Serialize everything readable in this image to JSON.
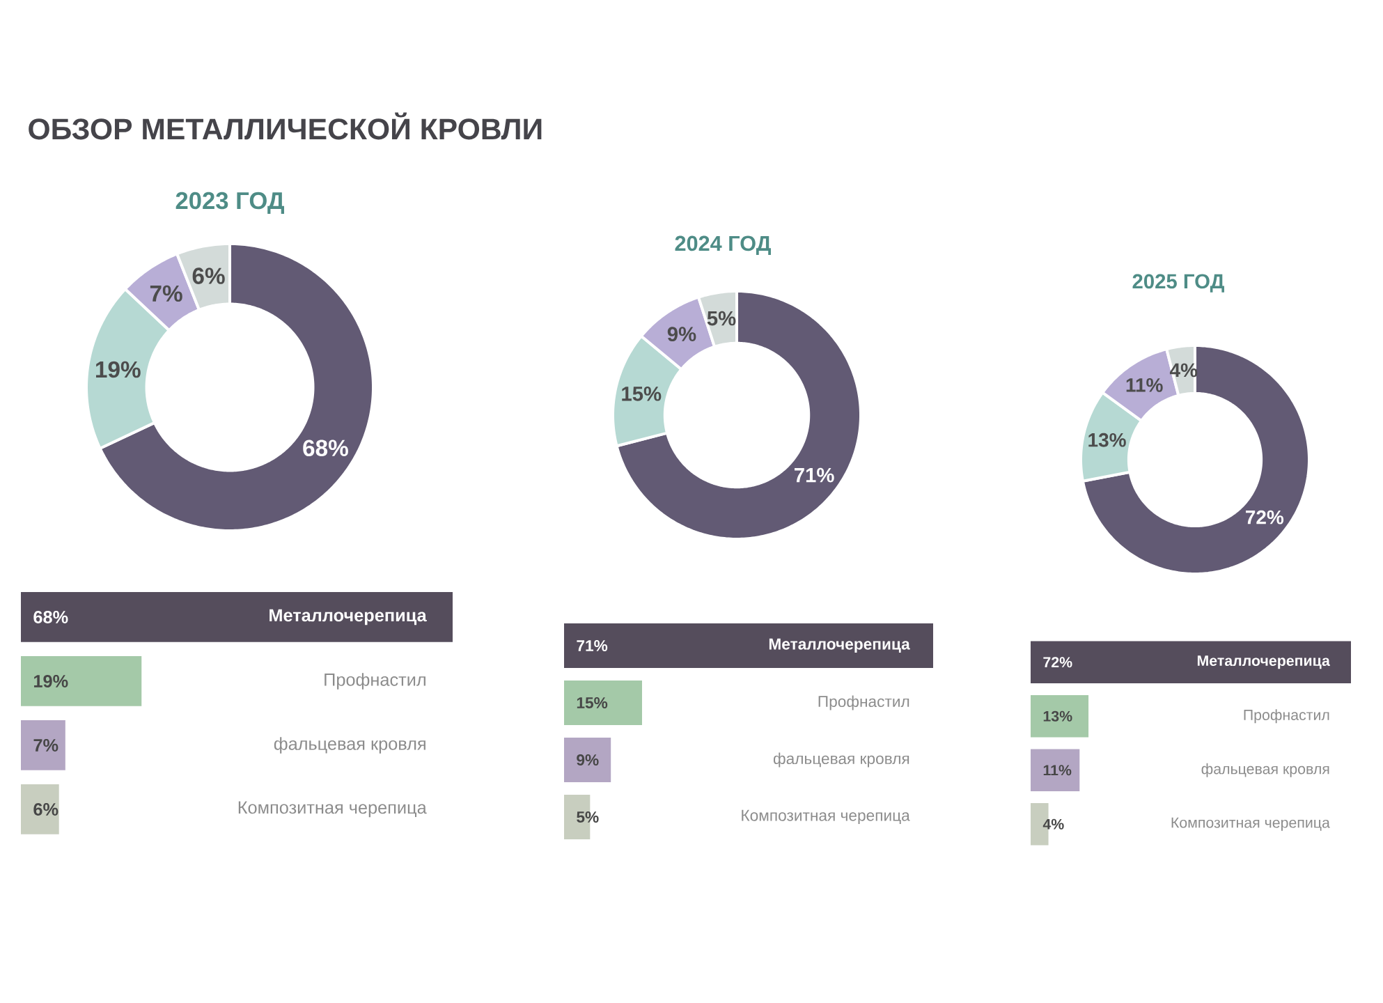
{
  "chart_data": [
    {
      "type": "donut",
      "title": "ОБЗОР МЕТАЛЛИЧЕСКОЙ КРОВЛИ",
      "subtitle": "2023 ГОД",
      "categories": [
        null,
        null,
        null,
        null
      ],
      "values": [
        68,
        19,
        7,
        6
      ],
      "colors": [
        "#625a74",
        "#b6d9d3",
        "#b8aed6",
        "#d3dbd9"
      ],
      "value_labels": [
        "68%",
        "19%",
        "7%",
        "6%"
      ]
    },
    {
      "type": "bar",
      "orientation": "horizontal",
      "categories": [
        "Металлочерепица",
        "Профнастил",
        "фальцевая кровля",
        "Композитная черепица"
      ],
      "values": [
        68,
        19,
        7,
        6
      ],
      "colors": [
        "#554d5c",
        "#a4c9a8",
        "#b3a6c3",
        "#c8cebf"
      ],
      "value_labels": [
        "68%",
        "19%",
        "7%",
        "6%"
      ]
    },
    {
      "type": "donut",
      "title": "2024 ГОД",
      "categories": [
        null,
        null,
        null,
        null
      ],
      "values": [
        71,
        15,
        9,
        5
      ],
      "colors": [
        "#625a74",
        "#b6d9d3",
        "#b8aed6",
        "#d3dbd9"
      ],
      "value_labels": [
        "71%",
        "15%",
        "9%",
        "5%"
      ]
    },
    {
      "type": "bar",
      "orientation": "horizontal",
      "categories": [
        "Металлочерепица",
        "Профнастил",
        "фальцевая кровля",
        "Композитная черепица"
      ],
      "values": [
        71,
        15,
        9,
        5
      ],
      "colors": [
        "#554d5c",
        "#a4c9a8",
        "#b3a6c3",
        "#c8cebf"
      ],
      "value_labels": [
        "71%",
        "15%",
        "9%",
        "5%"
      ]
    },
    {
      "type": "donut",
      "title": "2025 ГОД",
      "categories": [
        null,
        null,
        null,
        null
      ],
      "values": [
        72,
        13,
        11,
        4
      ],
      "colors": [
        "#625a74",
        "#b6d9d3",
        "#b8aed6",
        "#d3dbd9"
      ],
      "value_labels": [
        "72%",
        "13%",
        "11%",
        "4%"
      ]
    },
    {
      "type": "bar",
      "orientation": "horizontal",
      "categories": [
        "Металлочерепица",
        "Профнастил",
        "фальцевая кровля",
        "Композитная черепица"
      ],
      "values": [
        72,
        13,
        11,
        4
      ],
      "colors": [
        "#554d5c",
        "#a4c9a8",
        "#b3a6c3",
        "#c8cebf"
      ],
      "value_labels": [
        "72%",
        "13%",
        "11%",
        "4%"
      ]
    }
  ]
}
